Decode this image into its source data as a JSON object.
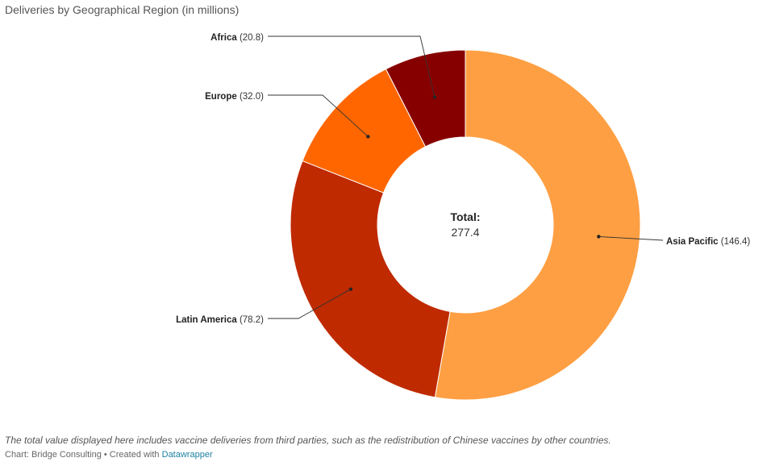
{
  "chart_data": {
    "type": "pie",
    "title": "Deliveries by Geographical Region (in millions)",
    "categories": [
      "Asia Pacific",
      "Latin America",
      "Europe",
      "Africa"
    ],
    "values": [
      146.4,
      78.2,
      32.0,
      20.8
    ],
    "value_labels": [
      "(146.4)",
      "(78.2)",
      "(32.0)",
      "(20.8)"
    ],
    "colors": [
      "#fe9f43",
      "#bf2a00",
      "#ff6600",
      "#870000"
    ],
    "center_label": "Total:",
    "center_value": "277.4"
  },
  "footnote": "The total value displayed here includes vaccine deliveries from third parties, such as the redistribution of Chinese vaccines by other countries.",
  "credit": {
    "prefix": "Chart: Bridge Consulting • Created with ",
    "link_text": "Datawrapper"
  }
}
